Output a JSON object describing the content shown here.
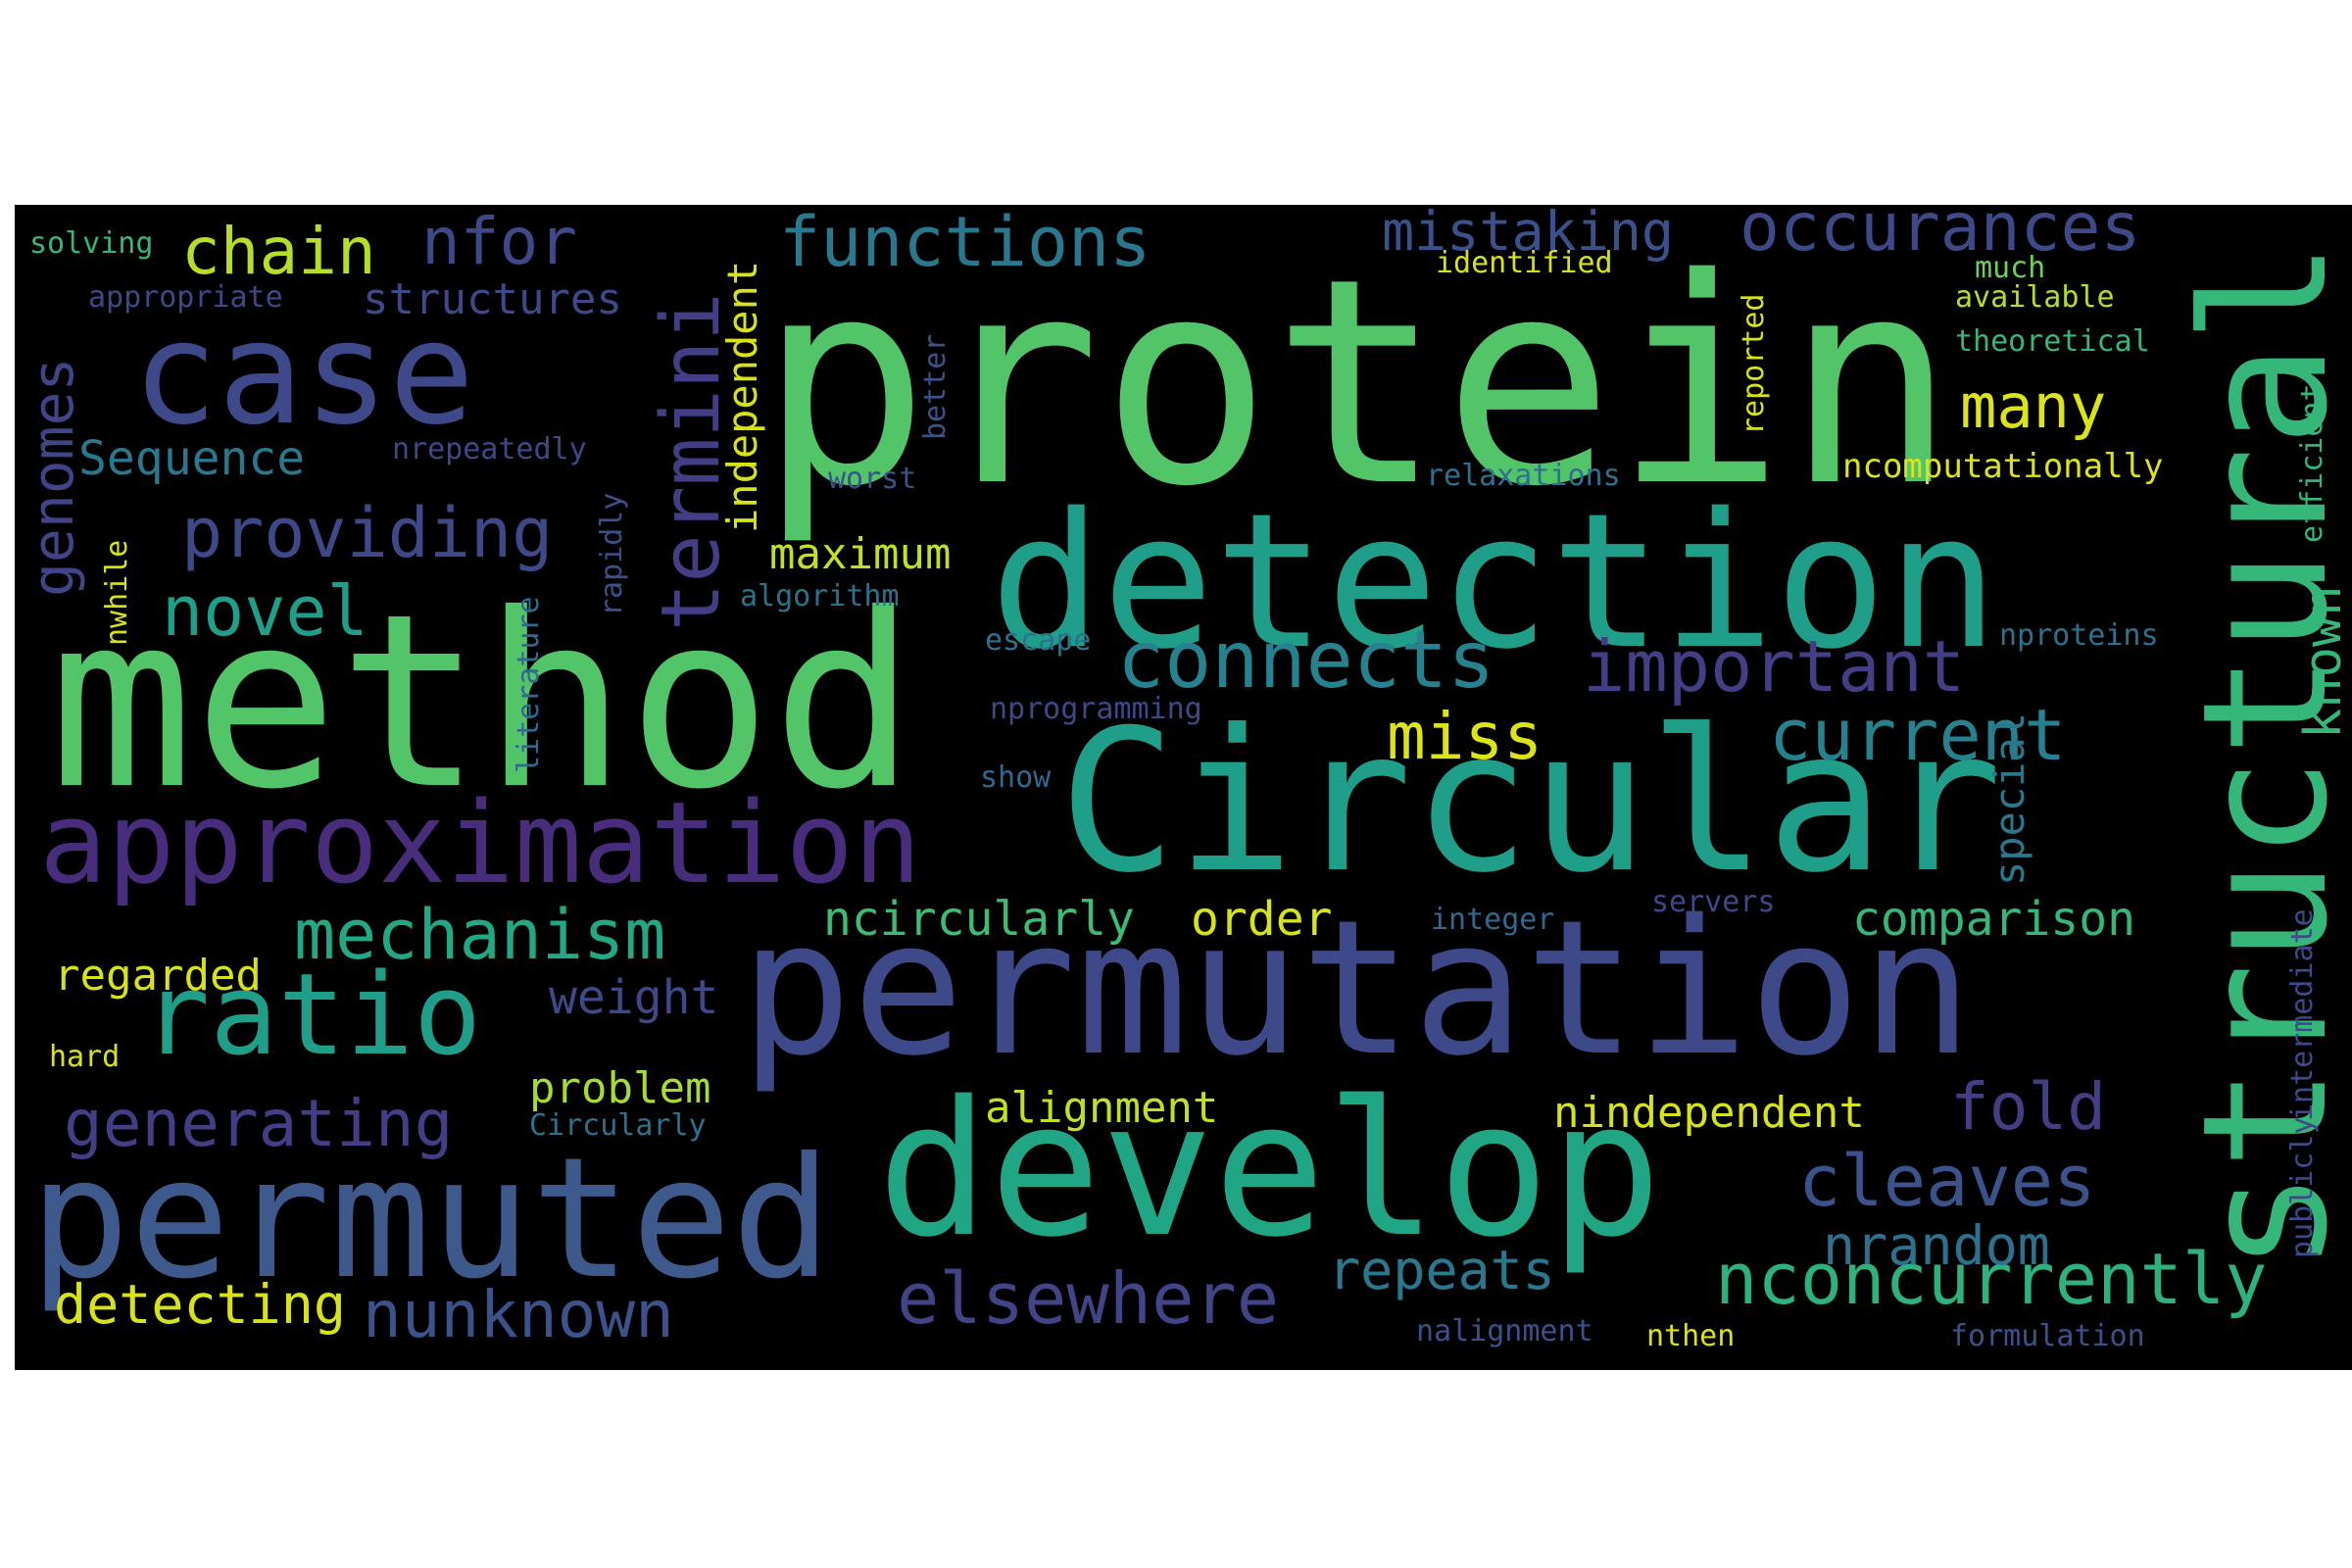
{
  "palette": {
    "background": "#000000",
    "dark-purple": "#482878",
    "indigo": "#3e4989",
    "blue": "#31688e",
    "teal": "#26828e",
    "sea": "#1f9e89",
    "green": "#35b779",
    "lime": "#6ece58",
    "bright-green": "#52c569",
    "yellow": "#b5de2b",
    "bright-yellow": "#fde725"
  },
  "words": [
    {
      "id": "protein",
      "text": "protein",
      "color": "#52c569"
    },
    {
      "id": "method",
      "text": "method",
      "color": "#52c569"
    },
    {
      "id": "circular",
      "text": "Circular",
      "color": "#1f9e89"
    },
    {
      "id": "permutation",
      "text": "permutation",
      "color": "#3e4989"
    },
    {
      "id": "detection",
      "text": "detection",
      "color": "#1f9e89"
    },
    {
      "id": "develop",
      "text": "develop",
      "color": "#21a685"
    },
    {
      "id": "permuted",
      "text": "permuted",
      "color": "#3e5a8c"
    },
    {
      "id": "structural",
      "text": "structural",
      "color": "#35b779"
    },
    {
      "id": "approximation",
      "text": "approximation",
      "color": "#472d7b"
    },
    {
      "id": "case",
      "text": "case",
      "color": "#3e4989"
    },
    {
      "id": "ratio",
      "text": "ratio",
      "color": "#1f9e89"
    },
    {
      "id": "termini",
      "text": "termini",
      "color": "#433e85"
    },
    {
      "id": "connects",
      "text": "connects",
      "color": "#26828e"
    },
    {
      "id": "important",
      "text": "important",
      "color": "#433e85"
    },
    {
      "id": "functions",
      "text": "functions",
      "color": "#2a788e"
    },
    {
      "id": "occurances",
      "text": "occurances",
      "color": "#3e4989"
    },
    {
      "id": "mistaking",
      "text": "mistaking",
      "color": "#3b518b"
    },
    {
      "id": "current",
      "text": "current",
      "color": "#26828e"
    },
    {
      "id": "providing",
      "text": "providing",
      "color": "#3e4989"
    },
    {
      "id": "mechanism",
      "text": "mechanism",
      "color": "#22a884"
    },
    {
      "id": "generating",
      "text": "generating",
      "color": "#433e85"
    },
    {
      "id": "elsewhere",
      "text": "elsewhere",
      "color": "#414487"
    },
    {
      "id": "nconcurrently",
      "text": "nconcurrently",
      "color": "#2db27d"
    },
    {
      "id": "nunknown",
      "text": "nunknown",
      "color": "#3b528b"
    },
    {
      "id": "cleaves",
      "text": "cleaves",
      "color": "#3b528b"
    },
    {
      "id": "fold",
      "text": "fold",
      "color": "#433e85"
    },
    {
      "id": "nrandom",
      "text": "nrandom",
      "color": "#2c728e"
    },
    {
      "id": "repeats",
      "text": "repeats",
      "color": "#2a788e"
    },
    {
      "id": "many",
      "text": "many",
      "color": "#dce319"
    },
    {
      "id": "miss",
      "text": "miss",
      "color": "#dce319"
    },
    {
      "id": "chain",
      "text": "chain",
      "color": "#b5de2b"
    },
    {
      "id": "nfor",
      "text": "nfor",
      "color": "#3e4989"
    },
    {
      "id": "novel",
      "text": "novel",
      "color": "#1f9e89"
    },
    {
      "id": "genomes",
      "text": "genomes",
      "color": "#414487"
    },
    {
      "id": "sequence",
      "text": "Sequence",
      "color": "#2a788e"
    },
    {
      "id": "detecting",
      "text": "detecting",
      "color": "#d8e219"
    },
    {
      "id": "comparison",
      "text": "comparison",
      "color": "#35b779"
    },
    {
      "id": "ncircularly",
      "text": "ncircularly",
      "color": "#3dbc74"
    },
    {
      "id": "order",
      "text": "order",
      "color": "#d8e219"
    },
    {
      "id": "alignment",
      "text": "alignment",
      "color": "#c2df23"
    },
    {
      "id": "nindependent",
      "text": "nindependent",
      "color": "#d8e219"
    },
    {
      "id": "maximum",
      "text": "maximum",
      "color": "#c2df23"
    },
    {
      "id": "structures",
      "text": "structures",
      "color": "#3e4989"
    },
    {
      "id": "weight",
      "text": "weight",
      "color": "#3e4989"
    },
    {
      "id": "problem",
      "text": "problem",
      "color": "#a5db36"
    },
    {
      "id": "regarded",
      "text": "regarded",
      "color": "#d8e219"
    },
    {
      "id": "independent",
      "text": "independent",
      "color": "#d8e219"
    },
    {
      "id": "special",
      "text": "special",
      "color": "#2a788e"
    },
    {
      "id": "known",
      "text": "known",
      "color": "#35b779"
    },
    {
      "id": "solving",
      "text": "solving",
      "color": "#35b779"
    },
    {
      "id": "appropriate",
      "text": "appropriate",
      "color": "#3e4989"
    },
    {
      "id": "nrepeatedly",
      "text": "nrepeatedly",
      "color": "#3e4989"
    },
    {
      "id": "worst",
      "text": "worst",
      "color": "#3b528b"
    },
    {
      "id": "better",
      "text": "better",
      "color": "#3b528b"
    },
    {
      "id": "identified",
      "text": "identified",
      "color": "#d8e219"
    },
    {
      "id": "reported",
      "text": "reported",
      "color": "#d8e219"
    },
    {
      "id": "much",
      "text": "much",
      "color": "#6ece58"
    },
    {
      "id": "available",
      "text": "available",
      "color": "#b5de2b"
    },
    {
      "id": "theoretical",
      "text": "theoretical",
      "color": "#35b779"
    },
    {
      "id": "efficient",
      "text": "efficient",
      "color": "#35b779"
    },
    {
      "id": "ncomputationally",
      "text": "ncomputationally",
      "color": "#dce319"
    },
    {
      "id": "relaxations",
      "text": "relaxations",
      "color": "#2c728e"
    },
    {
      "id": "nproteins",
      "text": "nproteins",
      "color": "#2c728e"
    },
    {
      "id": "nwhile",
      "text": "nwhile",
      "color": "#d8e219"
    },
    {
      "id": "rapidly",
      "text": "rapidly",
      "color": "#3b518b"
    },
    {
      "id": "literature",
      "text": "literature",
      "color": "#31688e"
    },
    {
      "id": "algorithm",
      "text": "algorithm",
      "color": "#2c728e"
    },
    {
      "id": "escape",
      "text": "escape",
      "color": "#2c728e"
    },
    {
      "id": "nprogramming",
      "text": "nprogramming",
      "color": "#3e4989"
    },
    {
      "id": "show",
      "text": "show",
      "color": "#31688e"
    },
    {
      "id": "integer",
      "text": "integer",
      "color": "#31688e"
    },
    {
      "id": "servers",
      "text": "servers",
      "color": "#3e4989"
    },
    {
      "id": "intermediate",
      "text": "intermediate",
      "color": "#3e4989"
    },
    {
      "id": "publicly",
      "text": "publicly",
      "color": "#3e4989"
    },
    {
      "id": "hard",
      "text": "hard",
      "color": "#d8e219"
    },
    {
      "id": "circularly",
      "text": "Circularly",
      "color": "#2c728e"
    },
    {
      "id": "nalignment",
      "text": "nalignment",
      "color": "#3b518b"
    },
    {
      "id": "nthen",
      "text": "nthen",
      "color": "#d8e219"
    },
    {
      "id": "formulation",
      "text": "formulation",
      "color": "#3b518b"
    }
  ]
}
